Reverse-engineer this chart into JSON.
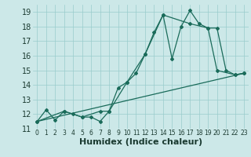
{
  "xlabel": "Humidex (Indice chaleur)",
  "bg_color": "#cce8e8",
  "grid_color": "#99cccc",
  "line_color": "#1a6b5a",
  "xlim": [
    -0.5,
    23.5
  ],
  "ylim": [
    11,
    19.5
  ],
  "yticks": [
    11,
    12,
    13,
    14,
    15,
    16,
    17,
    18,
    19
  ],
  "xticks": [
    0,
    1,
    2,
    3,
    4,
    5,
    6,
    7,
    8,
    9,
    10,
    11,
    12,
    13,
    14,
    15,
    16,
    17,
    18,
    19,
    20,
    21,
    22,
    23
  ],
  "line1_x": [
    0,
    1,
    2,
    3,
    4,
    5,
    6,
    7,
    8,
    9,
    10,
    11,
    12,
    13,
    14,
    15,
    16,
    17,
    18,
    19,
    20,
    21,
    22,
    23
  ],
  "line1_y": [
    11.5,
    12.3,
    11.6,
    12.2,
    12.0,
    11.8,
    11.8,
    11.5,
    12.2,
    13.8,
    14.2,
    14.8,
    16.1,
    17.6,
    18.8,
    15.8,
    18.0,
    19.1,
    18.2,
    17.9,
    17.9,
    15.0,
    14.7,
    14.8
  ],
  "line2_x": [
    0,
    3,
    5,
    7,
    8,
    10,
    12,
    14,
    17,
    19,
    20,
    22,
    23
  ],
  "line2_y": [
    11.5,
    12.2,
    11.8,
    12.2,
    12.2,
    14.2,
    16.1,
    18.8,
    18.2,
    17.9,
    15.0,
    14.7,
    14.8
  ],
  "line3_x": [
    0,
    23
  ],
  "line3_y": [
    11.5,
    14.8
  ],
  "xlabel_fontsize": 8,
  "tick_fontsize": 7,
  "xtick_fontsize": 5.5
}
